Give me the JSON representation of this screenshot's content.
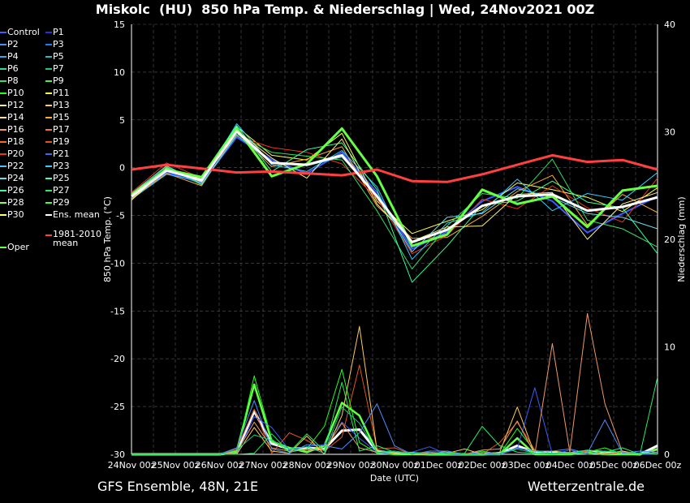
{
  "header": {
    "title": "Miskolc  (HU)  850 hPa Temp. & Niederschlag | Wed, 24Nov2021 00Z"
  },
  "footer": {
    "left": "GFS Ensemble, 48N, 21E",
    "right": "Wetterzentrale.de"
  },
  "legend": {
    "items": [
      {
        "label": "Control",
        "color": "#3a5cff"
      },
      {
        "label": "P1",
        "color": "#2233dd"
      },
      {
        "label": "P2",
        "color": "#4f8cff"
      },
      {
        "label": "P3",
        "color": "#1f7aff"
      },
      {
        "label": "P4",
        "color": "#33aadd"
      },
      {
        "label": "P5",
        "color": "#22bbcc"
      },
      {
        "label": "P6",
        "color": "#22ddaa"
      },
      {
        "label": "P7",
        "color": "#11cc88"
      },
      {
        "label": "P8",
        "color": "#33dd66"
      },
      {
        "label": "P9",
        "color": "#55ee44"
      },
      {
        "label": "P10",
        "color": "#22ff22"
      },
      {
        "label": "P11",
        "color": "#ffff44"
      },
      {
        "label": "P12",
        "color": "#ffee88"
      },
      {
        "label": "P13",
        "color": "#ffcc55"
      },
      {
        "label": "P14",
        "color": "#ffdd99"
      },
      {
        "label": "P15",
        "color": "#ffaa33"
      },
      {
        "label": "P16",
        "color": "#ee9966"
      },
      {
        "label": "P17",
        "color": "#ee7744"
      },
      {
        "label": "P18",
        "color": "#ff6622"
      },
      {
        "label": "P19",
        "color": "#dd5522"
      },
      {
        "label": "P20",
        "color": "#ee3322"
      },
      {
        "label": "P21",
        "color": "#4466ee"
      },
      {
        "label": "P22",
        "color": "#55bbff"
      },
      {
        "label": "P23",
        "color": "#33ccff"
      },
      {
        "label": "P24",
        "color": "#66ddee"
      },
      {
        "label": "P25",
        "color": "#44ffcc"
      },
      {
        "label": "P26",
        "color": "#33ff99"
      },
      {
        "label": "P27",
        "color": "#22ee66"
      },
      {
        "label": "P28",
        "color": "#88ff55"
      },
      {
        "label": "P29",
        "color": "#44ff44"
      },
      {
        "label": "P30",
        "color": "#ffff66"
      },
      {
        "label": "Ens. mean",
        "color": "#ffffff"
      },
      {
        "label": "1981-2010 mean",
        "color": "#ff4040"
      },
      {
        "label": "Oper",
        "color": "#66ff44"
      }
    ]
  },
  "chart_data": {
    "type": "line",
    "title": "Miskolc  (HU)  850 hPa Temp. & Niederschlag | Wed, 24Nov2021 00Z",
    "xlabel": "Date (UTC)",
    "ylabel": "850 hPa Temp. (°C)",
    "y2label": "Niederschlag (mm)",
    "ylim": [
      -30,
      15
    ],
    "y2lim": [
      0,
      40
    ],
    "yticks": [
      15,
      10,
      5,
      0,
      -5,
      -10,
      -15,
      -20,
      -25,
      -30
    ],
    "y2ticks": [
      40,
      30,
      20,
      10,
      0
    ],
    "xticks": [
      "24Nov 00z",
      "25Nov 00z",
      "26Nov 00z",
      "27Nov 00z",
      "28Nov 00z",
      "29Nov 00z",
      "30Nov 00z",
      "01Dec 00z",
      "02Dec 00z",
      "03Dec 00z",
      "04Dec 00z",
      "05Dec 00z",
      "06Dec 00z"
    ],
    "x_days": [
      0,
      0.5,
      1,
      1.5,
      2,
      2.5,
      3,
      3.5,
      4,
      4.5,
      5,
      5.5,
      6,
      6.5,
      7,
      7.5,
      8,
      8.5,
      9,
      9.5,
      10,
      10.5,
      11,
      11.5,
      12
    ],
    "grid": true,
    "legend_position": "left",
    "series": [
      {
        "name": "Ens. mean",
        "values": [
          -3,
          -0.3,
          -1.3,
          3.8,
          0.5,
          0.3,
          1.3,
          -3,
          -7.8,
          -6.5,
          -4,
          -3,
          -2.8,
          -4.5,
          -4.1,
          -3.1
        ]
      },
      {
        "name": "1981-2010 mean",
        "values": [
          -0.2,
          0.3,
          -0.1,
          -0.5,
          -0.4,
          -0.6,
          -0.8,
          -0.2,
          -1.4,
          -1.5,
          -0.7,
          0.3,
          1.3,
          0.6,
          0.8,
          -0.2
        ]
      },
      {
        "name": "Control",
        "values": [
          -3.1,
          -0.5,
          -1.6,
          3.2,
          0.8,
          -0.6,
          1.6,
          -2.6,
          -8.5,
          -6.7,
          -3.5,
          -2,
          -3.5,
          -6.8,
          -4.8,
          -3
        ]
      },
      {
        "name": "Oper",
        "values": [
          -2.8,
          -0.2,
          -1,
          4.1,
          -0.9,
          0.4,
          4.1,
          -0.9,
          -8.2,
          -7,
          -2.3,
          -3.8,
          -3,
          -6.2,
          -2.4,
          -1.9
        ]
      },
      {
        "name": "P11",
        "values": [
          -3.3,
          0,
          -1.2,
          4.3,
          1.3,
          0.8,
          3.6,
          -3.5,
          -6.9,
          -5.6,
          -4.4,
          -1.6,
          -2.3,
          -3.1,
          -4.6,
          -2.1
        ]
      },
      {
        "name": "P15",
        "values": [
          -3.2,
          -0.6,
          -1.9,
          3.7,
          0.1,
          0.9,
          2.2,
          -4,
          -7.4,
          -7.3,
          -5.1,
          -2.5,
          -0.8,
          -6,
          -2.8,
          -4.7
        ]
      },
      {
        "name": "P20",
        "values": [
          -2.6,
          0.5,
          -1.1,
          3.3,
          2.1,
          1.6,
          0.4,
          -3.2,
          -9,
          -7.1,
          -3.3,
          -4.3,
          -1.9,
          -4.2,
          -5.7,
          -1.1
        ]
      },
      {
        "name": "P23",
        "values": [
          -3.3,
          -0.7,
          -1.4,
          4.6,
          0.3,
          -0.4,
          1.8,
          -2,
          -9.6,
          -5.8,
          -4.7,
          -1.2,
          -4.5,
          -2.7,
          -3.4,
          -0.5
        ]
      },
      {
        "name": "P8",
        "values": [
          -2.9,
          0.1,
          -1.8,
          3.5,
          1.6,
          1.2,
          0.8,
          -4.5,
          -10.6,
          -6.1,
          -2.7,
          -3.2,
          0.9,
          -5.5,
          -6.4,
          -8.3
        ]
      },
      {
        "name": "P26",
        "values": [
          -3,
          -0.4,
          -0.9,
          4.4,
          -0.4,
          1.9,
          2.6,
          -2.3,
          -12,
          -8.2,
          -3.9,
          -3.5,
          -1.4,
          -3.6,
          -4.2,
          -9
        ]
      },
      {
        "name": "P12",
        "values": [
          -3.4,
          -0.1,
          -1.5,
          3.9,
          1,
          -1.1,
          3,
          -3.8,
          -7.7,
          -6.2,
          -6.1,
          -2.8,
          -2.6,
          -7.5,
          -3.8,
          -2.6
        ]
      },
      {
        "name": "P24",
        "values": [
          -2.7,
          0.2,
          -1.7,
          3.4,
          0.6,
          0.2,
          1.1,
          -2.9,
          -8.8,
          -5.2,
          -4.8,
          -2.2,
          -3.1,
          -4.8,
          -5.2,
          -6.4
        ]
      }
    ],
    "precip_series": [
      {
        "name": "Ens. mean",
        "values": [
          0,
          0,
          0,
          0,
          0,
          0,
          0.2,
          4,
          1,
          0.5,
          0.6,
          0.5,
          2.2,
          2.3,
          0.3,
          0.1,
          0.1,
          0,
          0,
          0,
          0,
          0.1,
          0.8,
          0.2,
          0.2,
          0.1,
          0.3,
          0.2,
          0.1,
          0,
          0.8
        ]
      },
      {
        "name": "Oper",
        "values": [
          0,
          0,
          0,
          0,
          0,
          0,
          0.3,
          6.5,
          1.2,
          0.6,
          0.2,
          0.8,
          4.8,
          3.6,
          0.2,
          0,
          0,
          0,
          0,
          0,
          0,
          0,
          1.5,
          0,
          0,
          0,
          0.2,
          0,
          0,
          0,
          0.5
        ]
      },
      {
        "name": "Control",
        "values": [
          0,
          0,
          0,
          0,
          0,
          0,
          0,
          3.5,
          2.5,
          0.4,
          0.7,
          0.9,
          3,
          1.5,
          0.2,
          0,
          0.2,
          0.7,
          0,
          0,
          0,
          0,
          0.5,
          6.2,
          0,
          0.4,
          0,
          0.1,
          0.3,
          0,
          0
        ]
      },
      {
        "name": "P19",
        "values": [
          0,
          0,
          0,
          0,
          0,
          0,
          0.5,
          4.2,
          0.1,
          2,
          1.3,
          0.3,
          1.6,
          8.3,
          0.5,
          0.6,
          0,
          0.2,
          0,
          0.1,
          0,
          1.1,
          3,
          0.4,
          0,
          0.1,
          0.3,
          0,
          0.2,
          0.1,
          0
        ]
      },
      {
        "name": "P10",
        "values": [
          0,
          0,
          0,
          0,
          0,
          0,
          0.1,
          7.3,
          1.4,
          0.2,
          0.5,
          2.6,
          7.9,
          1.1,
          0.1,
          0,
          0.1,
          0,
          0.2,
          0,
          0.3,
          0,
          2.4,
          0.3,
          0.1,
          0,
          0.2,
          0.6,
          0,
          0.1,
          0
        ]
      },
      {
        "name": "P13",
        "values": [
          0,
          0,
          0,
          0,
          0,
          0,
          0,
          2.5,
          0.3,
          0.1,
          1.7,
          0,
          3.6,
          11.9,
          0.4,
          0.1,
          0,
          0,
          0.1,
          0.5,
          0,
          0.2,
          4.4,
          0,
          0.3,
          0.1,
          0,
          0.1,
          0.3,
          0,
          0.4
        ]
      },
      {
        "name": "P16",
        "values": [
          0,
          0,
          0,
          0,
          0,
          0,
          0.2,
          3,
          0.6,
          0.3,
          0.4,
          0.4,
          2.9,
          0.6,
          0.2,
          0.2,
          0.2,
          0,
          0.3,
          0,
          0.4,
          0.5,
          3.1,
          0,
          10.3,
          0.2,
          13.1,
          4.7,
          0.2,
          0,
          0.2
        ]
      },
      {
        "name": "P2",
        "values": [
          0,
          0,
          0,
          0,
          0,
          0,
          0.6,
          5,
          0.5,
          0.1,
          0.9,
          0.8,
          0.5,
          2,
          4.7,
          0.8,
          0,
          0.3,
          0.3,
          0,
          0.2,
          0,
          0.6,
          0.3,
          0.3,
          0.5,
          0.1,
          3.2,
          0.1,
          0.3,
          0.2
        ]
      },
      {
        "name": "P27",
        "values": [
          0,
          0,
          0,
          0,
          0,
          0,
          0,
          0.1,
          1.9,
          0.2,
          1.9,
          0.3,
          6.7,
          0.3,
          0.8,
          0.2,
          0.1,
          0,
          0,
          0.1,
          2.6,
          0.8,
          0.2,
          0.1,
          0,
          0.1,
          0.4,
          0.2,
          0.6,
          0,
          7.2
        ]
      },
      {
        "name": "P7",
        "values": [
          0,
          0,
          0,
          0,
          0,
          0,
          0.4,
          1.8,
          1.3,
          0.5,
          0.7,
          0.1,
          4.4,
          2.9,
          0.2,
          0.3,
          0.1,
          0.2,
          0.1,
          0,
          0,
          0.1,
          0.5,
          0.1,
          0.1,
          0.2,
          0,
          0.3,
          0.2,
          0.1,
          0.1
        ]
      }
    ]
  }
}
